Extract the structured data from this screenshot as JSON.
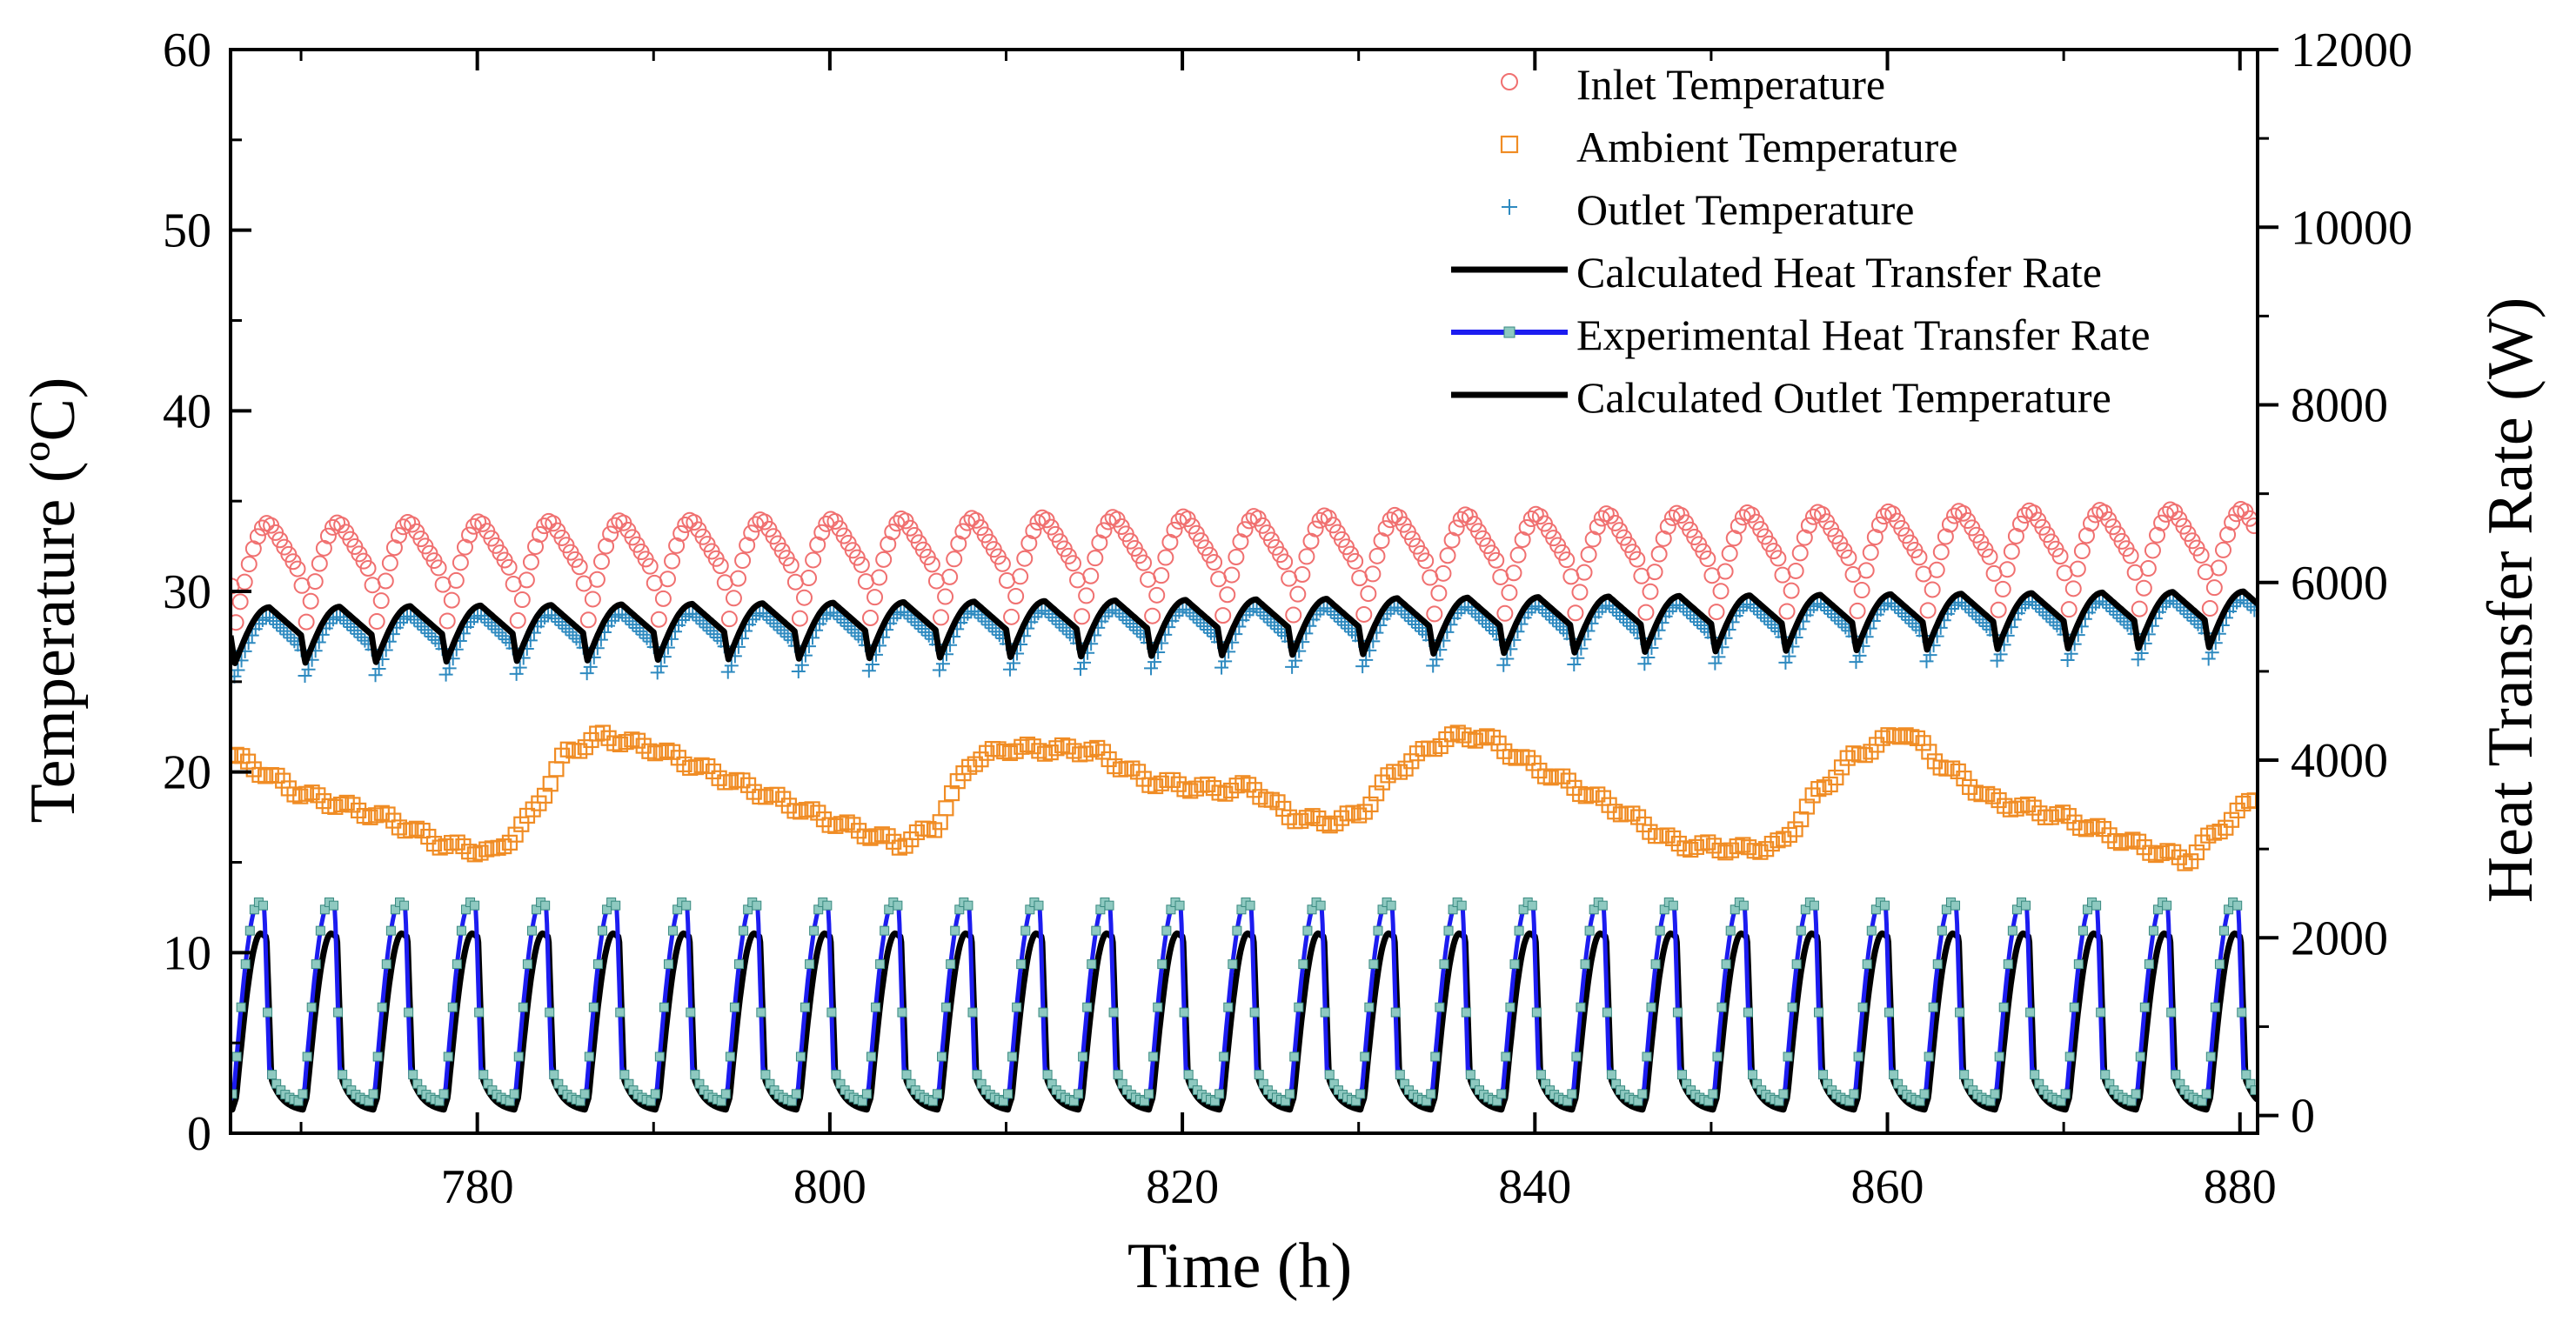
{
  "chart_data": {
    "type": "line",
    "xlabel": "Time (h)",
    "ylabel_left": "Temperature (ºC)",
    "ylabel_right": "Heat Transfer Rate (W)",
    "xlim": [
      766,
      881
    ],
    "ylim_left": [
      0,
      60
    ],
    "ylim_right": [
      -200,
      12000
    ],
    "x_ticks": [
      780,
      800,
      820,
      840,
      860,
      880
    ],
    "x_tick_labels": [
      "780",
      "800",
      "820",
      "840",
      "860",
      "880"
    ],
    "y_left_ticks": [
      0,
      10,
      20,
      30,
      40,
      50,
      60
    ],
    "y_left_tick_labels": [
      "0",
      "10",
      "20",
      "30",
      "40",
      "50",
      "60"
    ],
    "y_right_ticks": [
      0,
      2000,
      4000,
      6000,
      8000,
      10000,
      12000
    ],
    "y_right_tick_labels": [
      "0",
      "2000",
      "4000",
      "6000",
      "8000",
      "10000",
      "12000"
    ],
    "grid": false,
    "legend_position": "top-right",
    "cycle_period_h": 4,
    "first_cycle_start_h": 766,
    "series": [
      {
        "name": "Inlet Temperature",
        "axis": "left",
        "style": "circle-markers",
        "color": "#f07070",
        "min": 28.0,
        "max": 34.6
      },
      {
        "name": "Ambient Temperature",
        "axis": "left",
        "style": "square-markers",
        "color": "#f08c24",
        "x": [
          766,
          770,
          775,
          778,
          781,
          783,
          785,
          787,
          790,
          795,
          800,
          804,
          806,
          808,
          810,
          815,
          818,
          822,
          824,
          826,
          828,
          830,
          832,
          835,
          837,
          840,
          845,
          848,
          852,
          854,
          856,
          858,
          861,
          863,
          866,
          870,
          874,
          877,
          879,
          881
        ],
        "values": [
          21.0,
          18.8,
          17.4,
          16.0,
          15.5,
          17.5,
          21.0,
          22.0,
          21.3,
          19.3,
          17.3,
          16.0,
          17.0,
          20.6,
          21.3,
          21.2,
          19.5,
          19.0,
          19.2,
          17.6,
          17.2,
          17.6,
          20.0,
          21.9,
          22.0,
          20.3,
          17.8,
          16.0,
          15.7,
          16.0,
          18.8,
          20.8,
          22.3,
          20.5,
          18.4,
          17.5,
          16.0,
          15.1,
          17.0,
          18.7
        ]
      },
      {
        "name": "Outlet Temperature",
        "axis": "left",
        "style": "plus-markers",
        "color": "#2e8ac0",
        "min": 25.4,
        "max": 29.8
      },
      {
        "name": "Calculated Heat Transfer Rate",
        "axis": "right",
        "style": "line",
        "color": "#000000",
        "min": 0,
        "max": 2050
      },
      {
        "name": "Experimental Heat Transfer Rate",
        "axis": "right",
        "style": "line-with-square-markers",
        "color": "#1c1cf0",
        "marker_color": "#8ec9c0",
        "min": 80,
        "max": 2400
      },
      {
        "name": "Calculated Outlet Temperature",
        "axis": "left",
        "style": "line",
        "color": "#000000",
        "min": 26.0,
        "max": 30.0
      }
    ]
  }
}
